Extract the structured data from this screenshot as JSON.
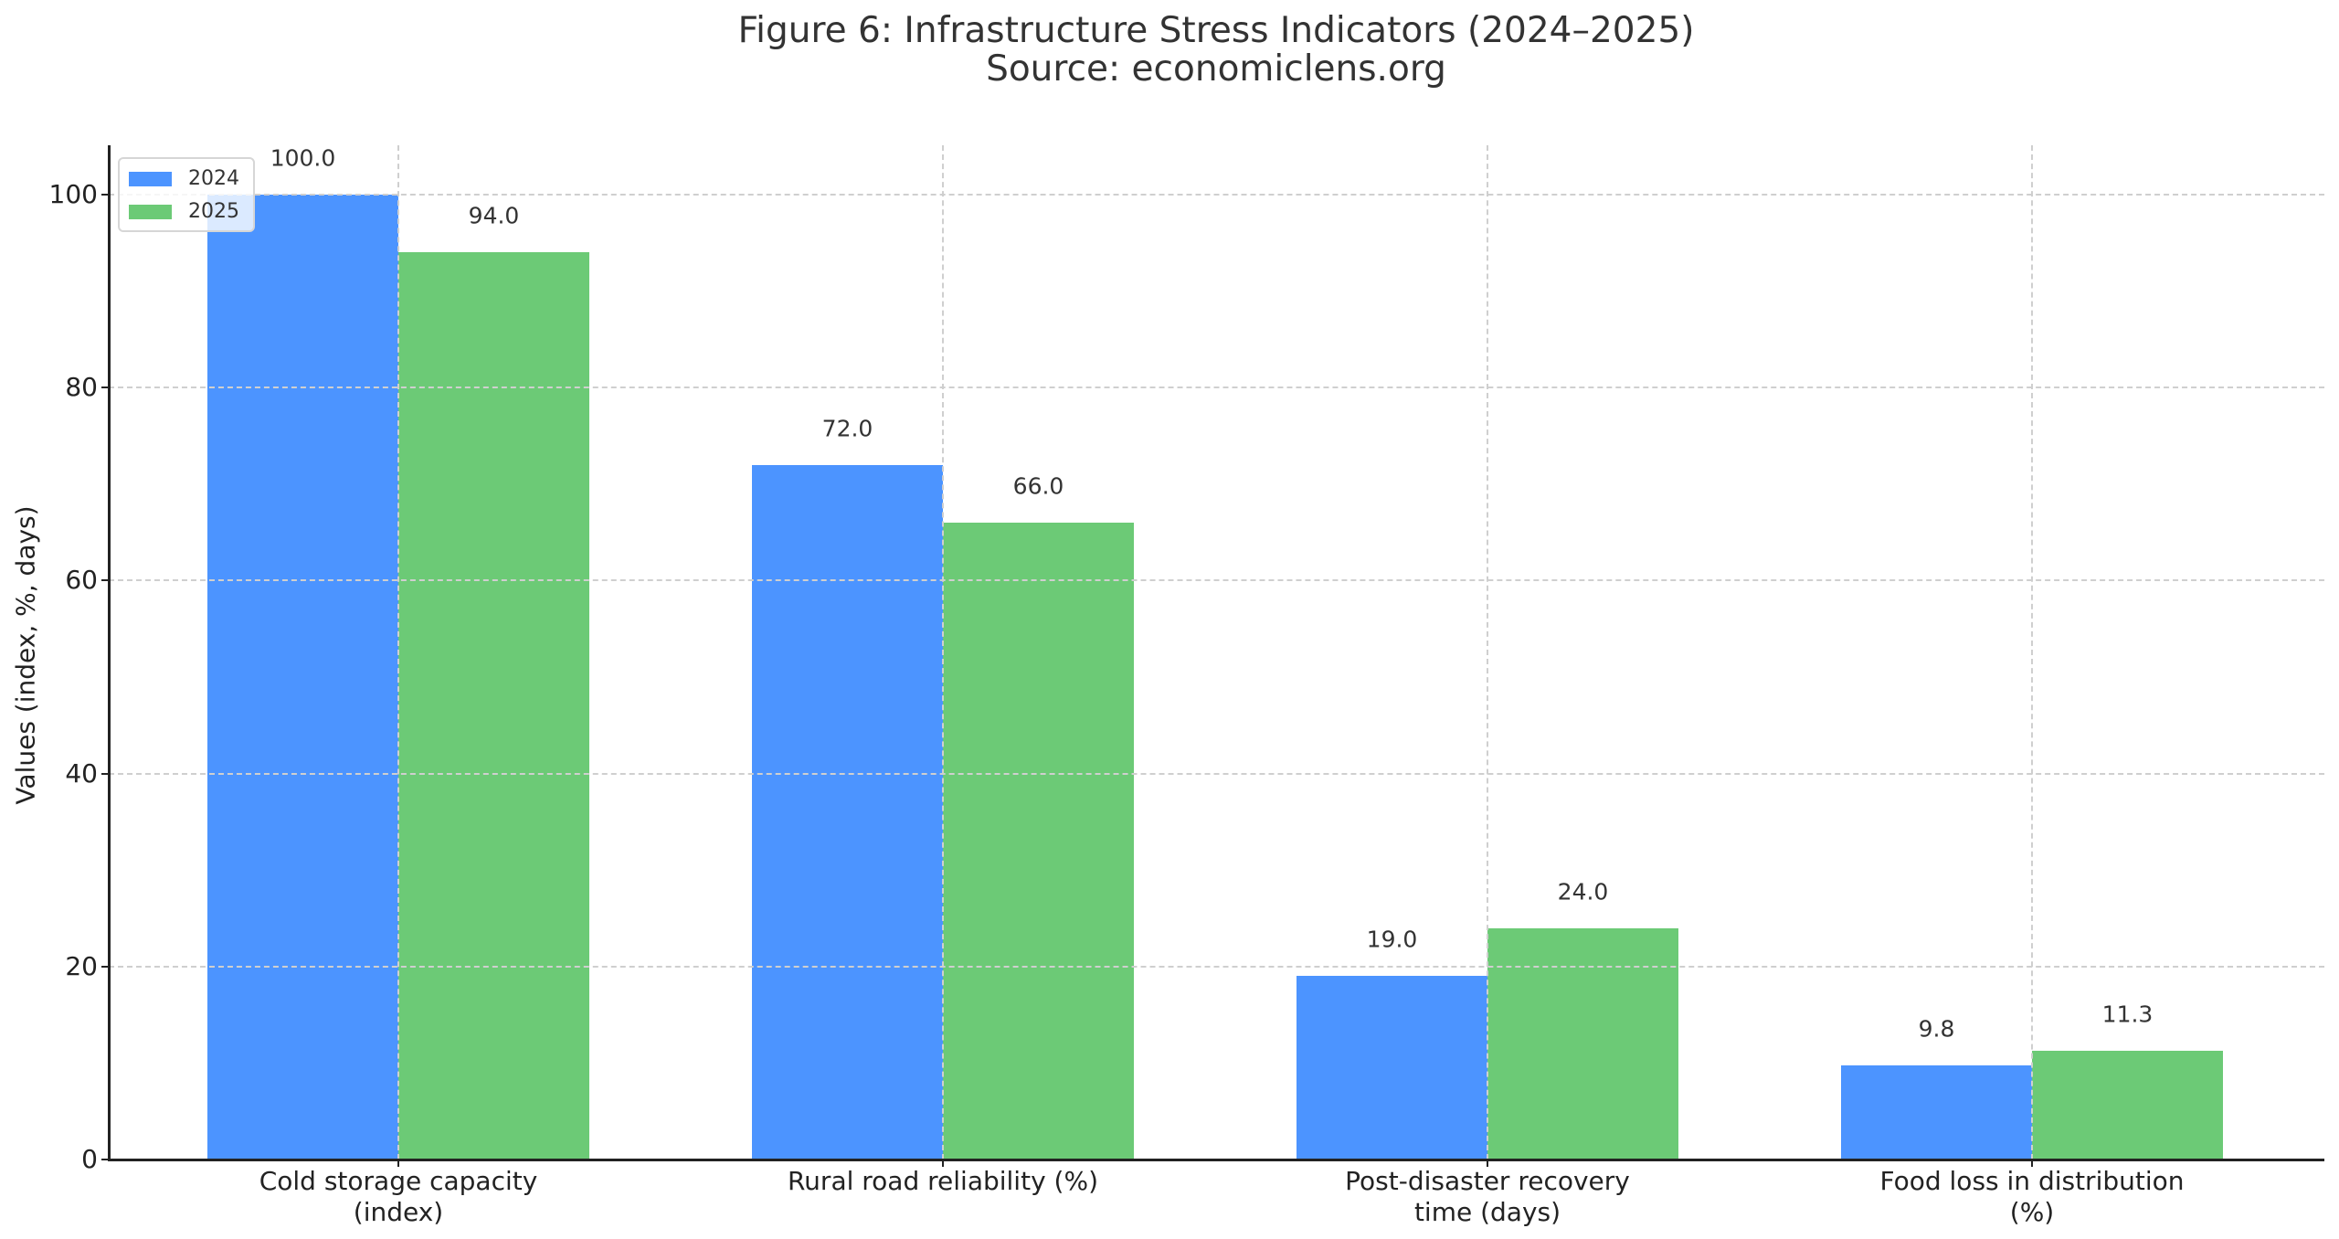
{
  "title": {
    "line1": "Figure 6: Infrastructure Stress Indicators (2024–2025)",
    "line2": "Source: economiclens.org"
  },
  "colors": {
    "2024": "#4C94FF",
    "2025": "#6CCA76"
  },
  "chart_data": {
    "type": "bar",
    "title": "Figure 6: Infrastructure Stress Indicators (2024–2025)\nSource: economiclens.org",
    "xlabel": "",
    "ylabel": "Values (index, %, days)",
    "categories": [
      "Cold storage capacity\n(index)",
      "Rural road reliability (%)",
      "Post-disaster recovery\ntime (days)",
      "Food loss in distribution\n(%)"
    ],
    "series": [
      {
        "name": "2024",
        "values": [
          100.0,
          72.0,
          19.0,
          9.8
        ]
      },
      {
        "name": "2025",
        "values": [
          94.0,
          66.0,
          24.0,
          11.3
        ]
      }
    ],
    "value_labels": {
      "2024": [
        "100.0",
        "72.0",
        "19.0",
        "9.8"
      ],
      "2025": [
        "94.0",
        "66.0",
        "24.0",
        "11.3"
      ]
    },
    "ylim": [
      0,
      105
    ],
    "yticks": [
      0,
      20,
      40,
      60,
      80,
      100
    ],
    "grid": true,
    "grid_style": "dashed",
    "legend_position": "upper left"
  },
  "legend": {
    "items": [
      {
        "label": "2024"
      },
      {
        "label": "2025"
      }
    ]
  }
}
